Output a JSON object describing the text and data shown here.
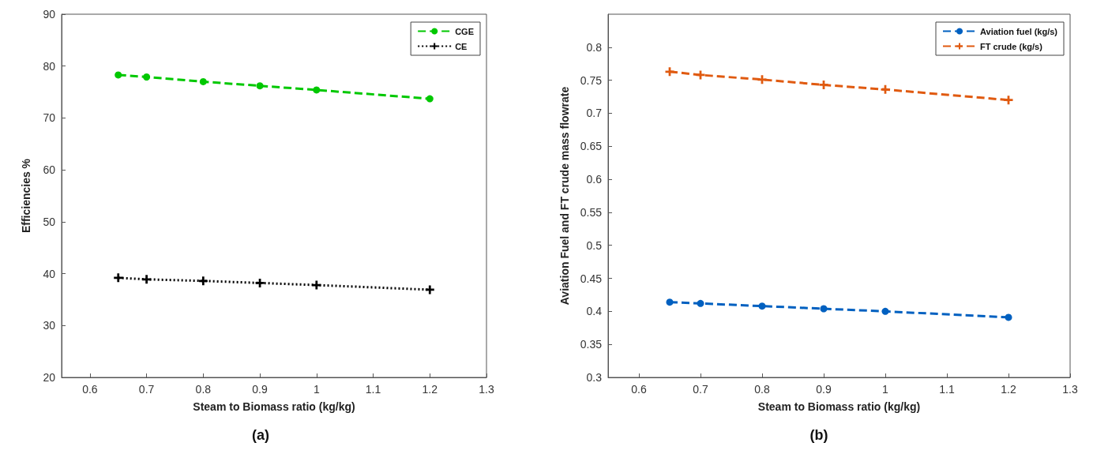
{
  "chart_data": [
    {
      "type": "line",
      "xlabel": "Steam to Biomass ratio (kg/kg)",
      "ylabel": "Efficiencies %",
      "annotations": [
        "(a)"
      ],
      "x": [
        0.65,
        0.7,
        0.8,
        0.9,
        1.0,
        1.2
      ],
      "series": [
        {
          "name": "CGE",
          "color": "#00c800",
          "values": [
            78.3,
            77.9,
            77.0,
            76.2,
            75.4,
            73.7
          ],
          "marker": "circle",
          "line_style": "dashed"
        },
        {
          "name": "CE",
          "color": "#000000",
          "values": [
            39.2,
            38.9,
            38.6,
            38.2,
            37.8,
            36.9
          ],
          "marker": "cross",
          "line_style": "dotted"
        }
      ],
      "xlim": [
        0.55,
        1.3
      ],
      "xticks": [
        0.6,
        0.7,
        0.8,
        0.9,
        1,
        1.1,
        1.2,
        1.3
      ],
      "ylim": [
        20,
        90
      ],
      "yticks": [
        20,
        30,
        40,
        50,
        60,
        70,
        80,
        90
      ],
      "grid": false,
      "legend": "top right"
    },
    {
      "type": "line",
      "xlabel": "Steam to Biomass ratio (kg/kg)",
      "ylabel": "Aviation Fuel and FT crude mass flowrate",
      "annotations": [
        "(b)"
      ],
      "x": [
        0.65,
        0.7,
        0.8,
        0.9,
        1.0,
        1.2
      ],
      "series": [
        {
          "name": "Aviation fuel (kg/s)",
          "color": "#0060c0",
          "values": [
            0.414,
            0.412,
            0.408,
            0.404,
            0.4,
            0.391
          ],
          "marker": "circle",
          "line_style": "dashed"
        },
        {
          "name": "FT crude (kg/s)",
          "color": "#e05a10",
          "values": [
            0.763,
            0.758,
            0.751,
            0.743,
            0.736,
            0.72
          ],
          "marker": "cross",
          "line_style": "dashed"
        }
      ],
      "xlim": [
        0.55,
        1.3
      ],
      "xticks": [
        0.6,
        0.7,
        0.8,
        0.9,
        1,
        1.1,
        1.2,
        1.3
      ],
      "ylim": [
        0.3,
        0.85
      ],
      "yticks": [
        0.3,
        0.35,
        0.4,
        0.45,
        0.5,
        0.55,
        0.6,
        0.65,
        0.7,
        0.75,
        0.8
      ],
      "grid": false,
      "legend": "top right"
    }
  ]
}
